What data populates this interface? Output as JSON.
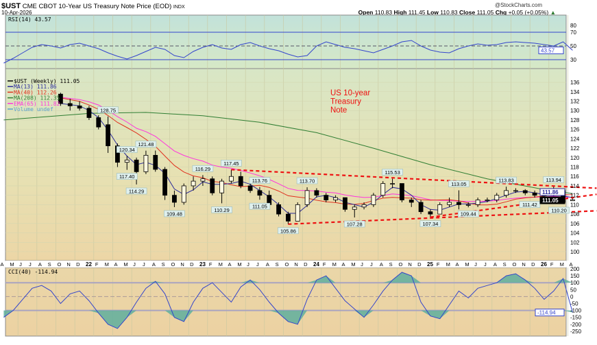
{
  "header": {
    "symbol": "$UST",
    "name": "CME CBOT 10-Year US Treasury Note Price (EOD)",
    "exchange": "INDX",
    "date": "10-Apr-2026",
    "copyright": "@StockCharts.com",
    "open_label": "Open",
    "open": "110.83",
    "high_label": "High",
    "high": "111.45",
    "low_label": "Low",
    "low": "110.83",
    "close_label": "Close",
    "close": "111.05",
    "chg_label": "Chg",
    "chg": "+0.05 (+0.05%)",
    "chg_icon": "up-triangle-icon"
  },
  "chart_data": [
    {
      "type": "line",
      "panel": "RSI",
      "title": "RSI(14) 43.57",
      "ylim": [
        20,
        90
      ],
      "ticks": [
        "80",
        "70",
        "50",
        "30"
      ],
      "reference_lines": [
        70,
        50,
        30
      ],
      "last_value_tag": "43.57",
      "x_start": "Apr 2021",
      "x_step": "month",
      "values": [
        25,
        32,
        40,
        48,
        52,
        50,
        47,
        52,
        54,
        50,
        46,
        40,
        35,
        31,
        36,
        42,
        48,
        45,
        36,
        33,
        42,
        48,
        52,
        47,
        45,
        52,
        55,
        50,
        46,
        43,
        38,
        34,
        36,
        50,
        56,
        52,
        48,
        46,
        43,
        40,
        45,
        50,
        56,
        58,
        50,
        44,
        41,
        40,
        46,
        50,
        53,
        51,
        52,
        55,
        56,
        55,
        54,
        52,
        50,
        56,
        43.57
      ],
      "color": "#3344cc"
    },
    {
      "type": "candlestick",
      "panel": "Price",
      "legend": [
        {
          "label": "$UST (Weekly) 111.05",
          "color": "#000000"
        },
        {
          "label": "MA(13) 111.86",
          "color": "#2a2a9a"
        },
        {
          "label": "MA(40) 112.26",
          "color": "#e0301e"
        },
        {
          "label": "MA(208) 112.35",
          "color": "#2e7d32"
        },
        {
          "label": "EMA(65) 111.82",
          "color": "#ff33dd"
        },
        {
          "label": "Volume undef",
          "color": "#5aa0d0"
        }
      ],
      "ylim": [
        99,
        137
      ],
      "ticks": [
        100,
        102,
        104,
        106,
        108,
        110,
        112,
        114,
        116,
        118,
        120,
        122,
        124,
        126,
        128,
        130,
        132,
        134,
        136
      ],
      "x_start": "Oct 2021",
      "x_step": "month",
      "ohlc": [
        [
          133.5,
          133.8,
          131.0,
          131.5
        ],
        [
          131.5,
          132.5,
          130.0,
          131.0
        ],
        [
          131.0,
          132.0,
          130.0,
          130.5
        ],
        [
          130.5,
          131.0,
          128.0,
          128.5
        ],
        [
          128.5,
          129.0,
          126.0,
          126.5
        ],
        [
          127.0,
          128.75,
          121.0,
          122.5
        ],
        [
          122.5,
          123.0,
          118.0,
          119.0
        ],
        [
          119.0,
          120.34,
          117.4,
          119.5
        ],
        [
          119.5,
          120.0,
          114.29,
          117.0
        ],
        [
          117.0,
          121.48,
          116.5,
          120.5
        ],
        [
          120.5,
          121.5,
          117.0,
          117.5
        ],
        [
          117.5,
          118.0,
          111.0,
          112.0
        ],
        [
          112.0,
          113.0,
          109.48,
          110.5
        ],
        [
          110.5,
          114.5,
          110.0,
          114.0
        ],
        [
          114.0,
          116.0,
          113.0,
          115.0
        ],
        [
          115.0,
          116.29,
          114.0,
          115.5
        ],
        [
          115.5,
          116.0,
          112.0,
          112.5
        ],
        [
          112.5,
          115.5,
          110.29,
          115.0
        ],
        [
          115.0,
          117.45,
          114.5,
          116.0
        ],
        [
          116.0,
          117.0,
          113.5,
          114.0
        ],
        [
          114.0,
          114.5,
          112.5,
          113.0
        ],
        [
          113.0,
          113.76,
          111.05,
          112.0
        ],
        [
          112.0,
          113.0,
          109.5,
          110.0
        ],
        [
          110.0,
          110.5,
          107.5,
          108.0
        ],
        [
          108.0,
          108.5,
          105.86,
          106.5
        ],
        [
          106.5,
          110.5,
          106.5,
          110.0
        ],
        [
          110.0,
          113.7,
          109.5,
          113.0
        ],
        [
          113.0,
          113.5,
          111.5,
          112.0
        ],
        [
          112.0,
          112.5,
          110.5,
          111.0
        ],
        [
          111.0,
          112.0,
          110.5,
          111.5
        ],
        [
          111.5,
          111.5,
          108.5,
          109.0
        ],
        [
          109.0,
          110.0,
          107.28,
          109.5
        ],
        [
          109.5,
          110.5,
          109.0,
          110.0
        ],
        [
          110.0,
          112.5,
          109.5,
          112.0
        ],
        [
          112.0,
          115.0,
          111.5,
          114.5
        ],
        [
          114.5,
          115.53,
          113.5,
          114.5
        ],
        [
          114.5,
          114.5,
          110.5,
          111.0
        ],
        [
          111.0,
          111.5,
          109.5,
          110.5
        ],
        [
          110.5,
          111.0,
          108.0,
          108.5
        ],
        [
          108.5,
          109.0,
          107.34,
          108.0
        ],
        [
          108.0,
          110.5,
          108.0,
          110.0
        ],
        [
          110.0,
          111.5,
          109.5,
          110.5
        ],
        [
          110.5,
          113.05,
          109.0,
          110.0
        ],
        [
          110.0,
          110.5,
          109.44,
          110.0
        ],
        [
          110.0,
          111.5,
          109.5,
          111.0
        ],
        [
          111.0,
          111.5,
          110.5,
          111.0
        ],
        [
          111.0,
          112.5,
          110.5,
          112.0
        ],
        [
          112.0,
          113.83,
          111.5,
          113.0
        ],
        [
          113.0,
          113.5,
          112.5,
          113.0
        ],
        [
          113.0,
          113.3,
          112.0,
          112.5
        ],
        [
          112.5,
          113.0,
          111.5,
          112.0
        ],
        [
          112.0,
          112.5,
          111.42,
          112.0
        ],
        [
          112.0,
          113.94,
          111.8,
          113.0
        ],
        [
          113.0,
          113.2,
          110.2,
          110.5
        ],
        [
          110.83,
          111.45,
          110.83,
          111.05
        ]
      ],
      "ma208": [
        [
          "Apr 2021",
          128.0
        ],
        [
          "Jan 2022",
          129.4
        ],
        [
          "Jul 2022",
          129.6
        ],
        [
          "Jan 2023",
          128.9
        ],
        [
          "Jul 2023",
          127.5
        ],
        [
          "Jan 2024",
          125.3
        ],
        [
          "Jul 2024",
          122.0
        ],
        [
          "Jan 2025",
          118.5
        ],
        [
          "Jul 2025",
          115.5
        ],
        [
          "Jan 2026",
          113.2
        ],
        [
          "Apr 2026",
          112.35
        ]
      ],
      "pivot_labels": [
        {
          "date": "Mar 2022",
          "text": "128.75",
          "pos": "above"
        },
        {
          "date": "May 2022",
          "text": "120.34",
          "pos": "above"
        },
        {
          "date": "May 2022",
          "text": "117.40",
          "pos": "below"
        },
        {
          "date": "Jun 2022",
          "text": "114.29",
          "pos": "below"
        },
        {
          "date": "Jul 2022",
          "text": "121.48",
          "pos": "above"
        },
        {
          "date": "Oct 2022",
          "text": "109.48",
          "pos": "below"
        },
        {
          "date": "Jan 2023",
          "text": "116.29",
          "pos": "above"
        },
        {
          "date": "Mar 2023",
          "text": "110.29",
          "pos": "below"
        },
        {
          "date": "Apr 2023",
          "text": "117.45",
          "pos": "above"
        },
        {
          "date": "Jul 2023",
          "text": "113.76",
          "pos": "above"
        },
        {
          "date": "Jul 2023",
          "text": "111.05",
          "pos": "below"
        },
        {
          "date": "Oct 2023",
          "text": "105.86",
          "pos": "below"
        },
        {
          "date": "Dec 2023",
          "text": "113.70",
          "pos": "above"
        },
        {
          "date": "May 2024",
          "text": "107.28",
          "pos": "below"
        },
        {
          "date": "Sep 2024",
          "text": "115.53",
          "pos": "above"
        },
        {
          "date": "Jan 2025",
          "text": "107.34",
          "pos": "below"
        },
        {
          "date": "Apr 2025",
          "text": "113.05",
          "pos": "above"
        },
        {
          "date": "May 2025",
          "text": "109.44",
          "pos": "below"
        },
        {
          "date": "Sep 2025",
          "text": "113.83",
          "pos": "above"
        },
        {
          "date": "Jan 2026",
          "text": "111.42",
          "pos": "below"
        },
        {
          "date": "Feb 2026",
          "text": "113.94",
          "pos": "above"
        },
        {
          "date": "Mar 2026",
          "text": "110.20",
          "pos": "below"
        }
      ],
      "trendlines": [
        {
          "from": [
            "Apr 2023",
            117.45
          ],
          "to": [
            "Apr 2026",
            113.5
          ],
          "color": "#ee1111"
        },
        {
          "from": [
            "Oct 2023",
            105.86
          ],
          "to": [
            "Apr 2026",
            108.7
          ],
          "color": "#ee1111"
        },
        {
          "from": [
            "Jan 2025",
            107.34
          ],
          "to": [
            "Apr 2026",
            112.2
          ],
          "color": "#ee1111"
        }
      ],
      "price_tags": [
        {
          "text": "111.86",
          "color": "#2a2a9a"
        },
        {
          "text": "111.05",
          "color": "#000000"
        }
      ],
      "annotation": [
        "US 10-year",
        "Treasury",
        "Note"
      ],
      "annotation_color": "#ee1111"
    },
    {
      "type": "area",
      "panel": "CCI",
      "title": "CCI(40) -114.94",
      "ylim": [
        -270,
        215
      ],
      "ticks": [
        200,
        150,
        100,
        50,
        0,
        -50,
        -100,
        -150,
        -200,
        -250
      ],
      "reference_lines": [
        100,
        0,
        -100
      ],
      "last_value_tag": "-114.94",
      "x_start": "Apr 2021",
      "x_step": "month",
      "values": [
        -150,
        -100,
        -20,
        60,
        80,
        40,
        -50,
        20,
        40,
        -30,
        -120,
        -200,
        -230,
        -150,
        -40,
        60,
        110,
        20,
        -150,
        -180,
        -40,
        60,
        100,
        30,
        -40,
        70,
        120,
        50,
        -40,
        -120,
        -180,
        -200,
        -20,
        120,
        150,
        60,
        -30,
        -90,
        -150,
        -60,
        40,
        120,
        175,
        150,
        -40,
        -140,
        -160,
        -60,
        40,
        -10,
        60,
        80,
        100,
        150,
        165,
        120,
        60,
        -20,
        40,
        130,
        -114.94
      ],
      "color": "#3344cc",
      "fill": "#5fae9e"
    }
  ],
  "xaxis": {
    "labels": [
      "A",
      "M",
      "J",
      "J",
      "A",
      "S",
      "O",
      "N",
      "D",
      "22",
      "F",
      "M",
      "A",
      "M",
      "J",
      "J",
      "A",
      "S",
      "O",
      "N",
      "D",
      "23",
      "F",
      "M",
      "A",
      "M",
      "J",
      "J",
      "A",
      "S",
      "O",
      "N",
      "D",
      "24",
      "F",
      "M",
      "A",
      "M",
      "J",
      "J",
      "A",
      "S",
      "O",
      "N",
      "D",
      "25",
      "F",
      "M",
      "A",
      "M",
      "J",
      "J",
      "A",
      "S",
      "O",
      "N",
      "D",
      "26",
      "F",
      "M",
      "A"
    ]
  }
}
